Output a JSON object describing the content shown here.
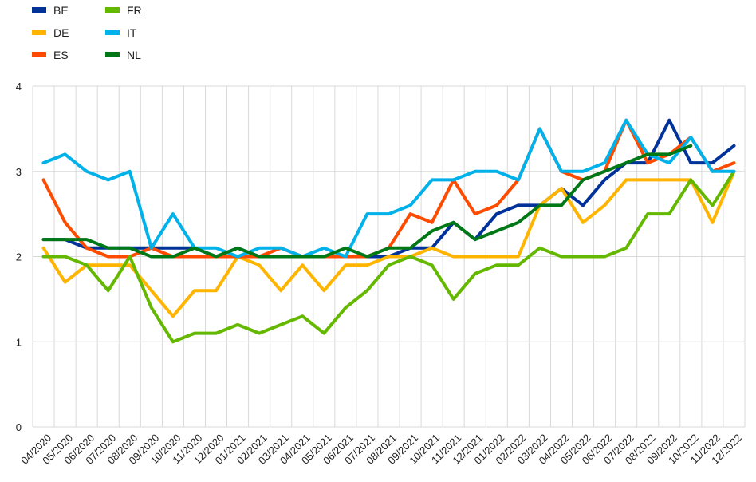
{
  "chart_data": {
    "type": "line",
    "title": "",
    "xlabel": "",
    "ylabel": "",
    "ylim": [
      0,
      4
    ],
    "yticks": [
      "0",
      "1",
      "2",
      "3",
      "4"
    ],
    "grid": true,
    "legend_position": "top-left",
    "categories": [
      "04/2020",
      "05/2020",
      "06/2020",
      "07/2020",
      "08/2020",
      "09/2020",
      "10/2020",
      "11/2020",
      "12/2020",
      "01/2021",
      "02/2021",
      "03/2021",
      "04/2021",
      "05/2021",
      "06/2021",
      "07/2021",
      "08/2021",
      "09/2021",
      "10/2021",
      "11/2021",
      "12/2021",
      "01/2022",
      "02/2022",
      "03/2022",
      "04/2022",
      "05/2022",
      "06/2022",
      "07/2022",
      "08/2022",
      "09/2022",
      "10/2022",
      "11/2022",
      "12/2022"
    ],
    "series": [
      {
        "name": "BE",
        "color": "#003299",
        "values": [
          2.2,
          2.2,
          2.1,
          2.1,
          2.1,
          2.1,
          2.1,
          2.1,
          2.0,
          2.1,
          2.0,
          2.0,
          2.0,
          2.0,
          2.0,
          2.0,
          2.0,
          2.1,
          2.1,
          2.4,
          2.2,
          2.5,
          2.6,
          2.6,
          2.8,
          2.6,
          2.9,
          3.1,
          3.1,
          3.6,
          3.1,
          3.1,
          3.3
        ]
      },
      {
        "name": "DE",
        "color": "#FFB400",
        "values": [
          2.1,
          1.7,
          1.9,
          1.9,
          1.9,
          1.6,
          1.3,
          1.6,
          1.6,
          2.0,
          1.9,
          1.6,
          1.9,
          1.6,
          1.9,
          1.9,
          2.0,
          2.0,
          2.1,
          2.0,
          2.0,
          2.0,
          2.0,
          2.6,
          2.8,
          2.4,
          2.6,
          2.9,
          2.9,
          2.9,
          2.9,
          2.4,
          3.0
        ]
      },
      {
        "name": "ES",
        "color": "#FF4B00",
        "values": [
          2.9,
          2.4,
          2.1,
          2.0,
          2.0,
          2.1,
          2.0,
          2.0,
          2.0,
          2.0,
          2.0,
          2.1,
          2.0,
          2.0,
          2.0,
          2.0,
          2.1,
          2.5,
          2.4,
          2.9,
          2.5,
          2.6,
          2.9,
          3.5,
          3.0,
          2.9,
          3.0,
          3.6,
          3.1,
          3.2,
          3.4,
          3.0,
          3.1
        ]
      },
      {
        "name": "FR",
        "color": "#65B800",
        "values": [
          2.0,
          2.0,
          1.9,
          1.6,
          2.0,
          1.4,
          1.0,
          1.1,
          1.1,
          1.2,
          1.1,
          1.2,
          1.3,
          1.1,
          1.4,
          1.6,
          1.9,
          2.0,
          1.9,
          1.5,
          1.8,
          1.9,
          1.9,
          2.1,
          2.0,
          2.0,
          2.0,
          2.1,
          2.5,
          2.5,
          2.9,
          2.6,
          3.0
        ]
      },
      {
        "name": "IT",
        "color": "#00B1EA",
        "values": [
          3.1,
          3.2,
          3.0,
          2.9,
          3.0,
          2.1,
          2.5,
          2.1,
          2.1,
          2.0,
          2.1,
          2.1,
          2.0,
          2.1,
          2.0,
          2.5,
          2.5,
          2.6,
          2.9,
          2.9,
          3.0,
          3.0,
          2.9,
          3.5,
          3.0,
          3.0,
          3.1,
          3.6,
          3.2,
          3.1,
          3.4,
          3.0,
          3.0
        ]
      },
      {
        "name": "NL",
        "color": "#007816",
        "values": [
          2.2,
          2.2,
          2.2,
          2.1,
          2.1,
          2.0,
          2.0,
          2.1,
          2.0,
          2.1,
          2.0,
          2.0,
          2.0,
          2.0,
          2.1,
          2.0,
          2.1,
          2.1,
          2.3,
          2.4,
          2.2,
          2.3,
          2.4,
          2.6,
          2.6,
          2.9,
          3.0,
          3.1,
          3.2,
          3.2,
          3.3,
          null,
          null
        ]
      }
    ],
    "gridline_color": "#d9d9d9"
  }
}
